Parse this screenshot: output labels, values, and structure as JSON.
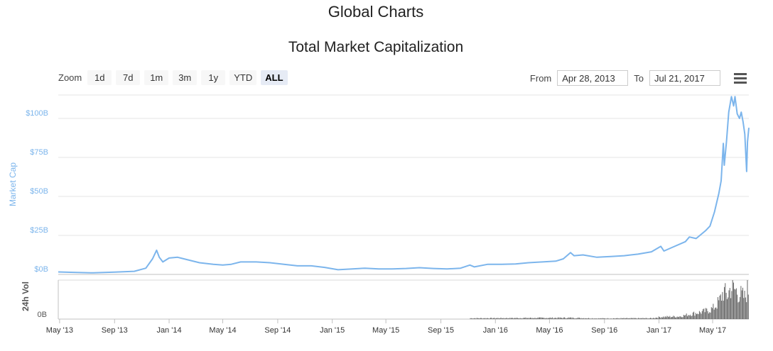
{
  "page_title": "Global Charts",
  "chart_title": "Total Market Capitalization",
  "zoom": {
    "label": "Zoom",
    "buttons": [
      "1d",
      "7d",
      "1m",
      "3m",
      "1y",
      "YTD",
      "ALL"
    ],
    "active": "ALL"
  },
  "range": {
    "from_label": "From",
    "from_value": "Apr 28, 2013",
    "to_label": "To",
    "to_value": "Jul 21, 2017"
  },
  "menu_icon": "hamburger-menu-icon",
  "colors": {
    "market_cap": "#7cb5ec",
    "volume": "#666666",
    "grid": "#e6e6e6"
  },
  "chart_data": {
    "type": "line",
    "title": "Total Market Capitalization",
    "ylabel": "Market Cap",
    "y_ticks": [
      "$0B",
      "$25B",
      "$50B",
      "$75B",
      "$100B"
    ],
    "y_tick_values": [
      0,
      25,
      50,
      75,
      100
    ],
    "ylim": [
      0,
      115
    ],
    "volume_ylabel": "24h Vol",
    "volume_ticks": [
      "0B"
    ],
    "x_ticks": [
      "May '13",
      "Sep '13",
      "Jan '14",
      "May '14",
      "Sep '14",
      "Jan '15",
      "May '15",
      "Sep '15",
      "Jan '16",
      "May '16",
      "Sep '16",
      "Jan '17",
      "May '17"
    ],
    "x_tick_dates": [
      "2013-05-01",
      "2013-09-01",
      "2014-01-01",
      "2014-05-01",
      "2014-09-01",
      "2015-01-01",
      "2015-05-01",
      "2015-09-01",
      "2016-01-01",
      "2016-05-01",
      "2016-09-01",
      "2017-01-01",
      "2017-05-01"
    ],
    "xlim": [
      "2013-04-28",
      "2017-07-21"
    ],
    "series": [
      {
        "name": "Market Cap",
        "unit": "billion USD",
        "points": [
          [
            "2013-04-28",
            1.6
          ],
          [
            "2013-06-01",
            1.3
          ],
          [
            "2013-07-15",
            1.0
          ],
          [
            "2013-09-01",
            1.5
          ],
          [
            "2013-10-15",
            2.0
          ],
          [
            "2013-11-10",
            4.0
          ],
          [
            "2013-11-25",
            10.0
          ],
          [
            "2013-12-04",
            15.5
          ],
          [
            "2013-12-10",
            11.0
          ],
          [
            "2013-12-18",
            8.0
          ],
          [
            "2014-01-01",
            10.5
          ],
          [
            "2014-01-20",
            11.0
          ],
          [
            "2014-02-10",
            9.5
          ],
          [
            "2014-03-10",
            7.5
          ],
          [
            "2014-04-10",
            6.5
          ],
          [
            "2014-05-01",
            6.0
          ],
          [
            "2014-05-20",
            6.5
          ],
          [
            "2014-06-10",
            8.0
          ],
          [
            "2014-07-15",
            8.0
          ],
          [
            "2014-08-15",
            7.5
          ],
          [
            "2014-09-15",
            6.5
          ],
          [
            "2014-10-15",
            5.5
          ],
          [
            "2014-11-15",
            5.5
          ],
          [
            "2014-12-15",
            4.5
          ],
          [
            "2015-01-14",
            3.0
          ],
          [
            "2015-02-15",
            3.5
          ],
          [
            "2015-03-15",
            4.0
          ],
          [
            "2015-04-15",
            3.5
          ],
          [
            "2015-05-15",
            3.5
          ],
          [
            "2015-06-15",
            3.8
          ],
          [
            "2015-07-15",
            4.3
          ],
          [
            "2015-08-15",
            3.8
          ],
          [
            "2015-09-15",
            3.5
          ],
          [
            "2015-10-15",
            4.0
          ],
          [
            "2015-11-05",
            6.0
          ],
          [
            "2015-11-15",
            4.8
          ],
          [
            "2015-12-15",
            6.5
          ],
          [
            "2016-01-15",
            6.5
          ],
          [
            "2016-02-15",
            6.7
          ],
          [
            "2016-03-15",
            7.5
          ],
          [
            "2016-04-15",
            8.0
          ],
          [
            "2016-05-15",
            8.5
          ],
          [
            "2016-06-01",
            10.0
          ],
          [
            "2016-06-17",
            14.0
          ],
          [
            "2016-06-25",
            12.0
          ],
          [
            "2016-07-15",
            12.5
          ],
          [
            "2016-08-15",
            11.0
          ],
          [
            "2016-09-15",
            11.5
          ],
          [
            "2016-10-15",
            12.0
          ],
          [
            "2016-11-15",
            13.0
          ],
          [
            "2016-12-15",
            14.5
          ],
          [
            "2017-01-05",
            18.0
          ],
          [
            "2017-01-12",
            15.0
          ],
          [
            "2017-02-01",
            17.5
          ],
          [
            "2017-03-01",
            21.0
          ],
          [
            "2017-03-10",
            24.0
          ],
          [
            "2017-03-25",
            23.0
          ],
          [
            "2017-04-15",
            28.0
          ],
          [
            "2017-04-25",
            31.0
          ],
          [
            "2017-05-05",
            40.0
          ],
          [
            "2017-05-15",
            52.0
          ],
          [
            "2017-05-20",
            60.0
          ],
          [
            "2017-05-25",
            84.0
          ],
          [
            "2017-05-27",
            70.0
          ],
          [
            "2017-06-01",
            85.0
          ],
          [
            "2017-06-06",
            104.0
          ],
          [
            "2017-06-12",
            114.0
          ],
          [
            "2017-06-17",
            108.0
          ],
          [
            "2017-06-20",
            114.0
          ],
          [
            "2017-06-25",
            103.0
          ],
          [
            "2017-06-30",
            100.0
          ],
          [
            "2017-07-04",
            104.0
          ],
          [
            "2017-07-08",
            98.0
          ],
          [
            "2017-07-12",
            90.0
          ],
          [
            "2017-07-16",
            66.0
          ],
          [
            "2017-07-18",
            85.0
          ],
          [
            "2017-07-21",
            94.0
          ]
        ]
      },
      {
        "name": "24h Vol",
        "unit": "billion USD",
        "points": [
          [
            "2015-11-05",
            0.1
          ],
          [
            "2016-06-17",
            0.15
          ],
          [
            "2016-08-15",
            0.08
          ],
          [
            "2016-12-15",
            0.1
          ],
          [
            "2017-01-05",
            0.25
          ],
          [
            "2017-02-15",
            0.3
          ],
          [
            "2017-03-15",
            0.6
          ],
          [
            "2017-04-15",
            0.9
          ],
          [
            "2017-05-01",
            1.2
          ],
          [
            "2017-05-15",
            2.0
          ],
          [
            "2017-05-25",
            3.2
          ],
          [
            "2017-06-01",
            2.6
          ],
          [
            "2017-06-10",
            3.6
          ],
          [
            "2017-06-20",
            3.3
          ],
          [
            "2017-07-01",
            2.8
          ],
          [
            "2017-07-12",
            2.4
          ],
          [
            "2017-07-17",
            3.5
          ],
          [
            "2017-07-21",
            3.0
          ]
        ]
      }
    ],
    "grid": true,
    "legend": "none"
  }
}
